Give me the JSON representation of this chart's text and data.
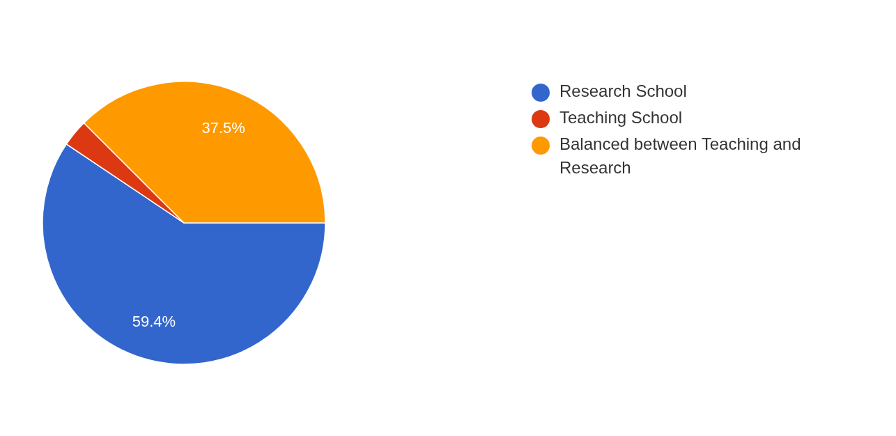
{
  "chart_data": {
    "type": "pie",
    "categories": [
      "Research School",
      "Teaching School",
      "Balanced between Teaching and Research"
    ],
    "values": [
      59.4,
      3.1,
      37.5
    ],
    "colors": [
      "#3366cc",
      "#dc3912",
      "#ff9900"
    ],
    "value_labels": [
      "59.4%",
      null,
      "37.5%"
    ],
    "legend": "right"
  }
}
